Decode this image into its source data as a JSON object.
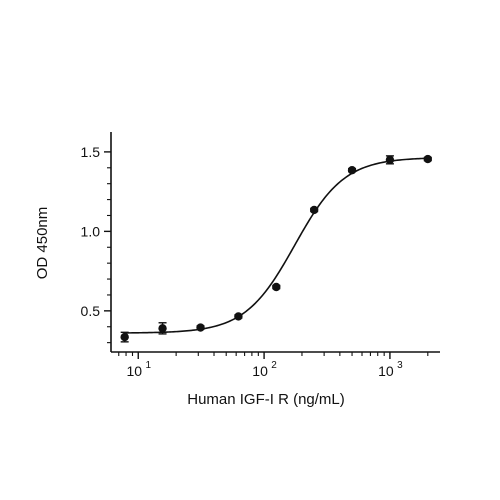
{
  "chart_data": {
    "type": "scatter",
    "title": "",
    "xlabel": "Human IGF-I R (ng/mL)",
    "ylabel": "OD 450nm",
    "x_scale": "log",
    "xlim": [
      6.3,
      2500
    ],
    "ylim": [
      0.26,
      1.6
    ],
    "x_ticks": [
      {
        "value": 10,
        "base": "10",
        "exp": "1"
      },
      {
        "value": 100,
        "base": "10",
        "exp": "2"
      },
      {
        "value": 1000,
        "base": "10",
        "exp": "3"
      }
    ],
    "y_ticks": [
      {
        "value": 0.5,
        "label": "0.5"
      },
      {
        "value": 1.0,
        "label": "1.0"
      },
      {
        "value": 1.5,
        "label": "1.5"
      }
    ],
    "grid": false,
    "legend": "none",
    "series": [
      {
        "x": [
          7.8,
          15.6,
          31.25,
          62.5,
          125,
          250,
          500,
          1000,
          2000
        ],
        "y": [
          0.335,
          0.39,
          0.395,
          0.465,
          0.65,
          1.135,
          1.385,
          1.45,
          1.455
        ],
        "error": [
          0.03,
          0.035,
          0.01,
          0.01,
          0.01,
          0.01,
          0.01,
          0.025,
          0.01
        ]
      }
    ],
    "fit": {
      "model": "4PL",
      "bottom": 0.36,
      "top": 1.465,
      "ec50": 175,
      "hill": 2.2
    }
  }
}
